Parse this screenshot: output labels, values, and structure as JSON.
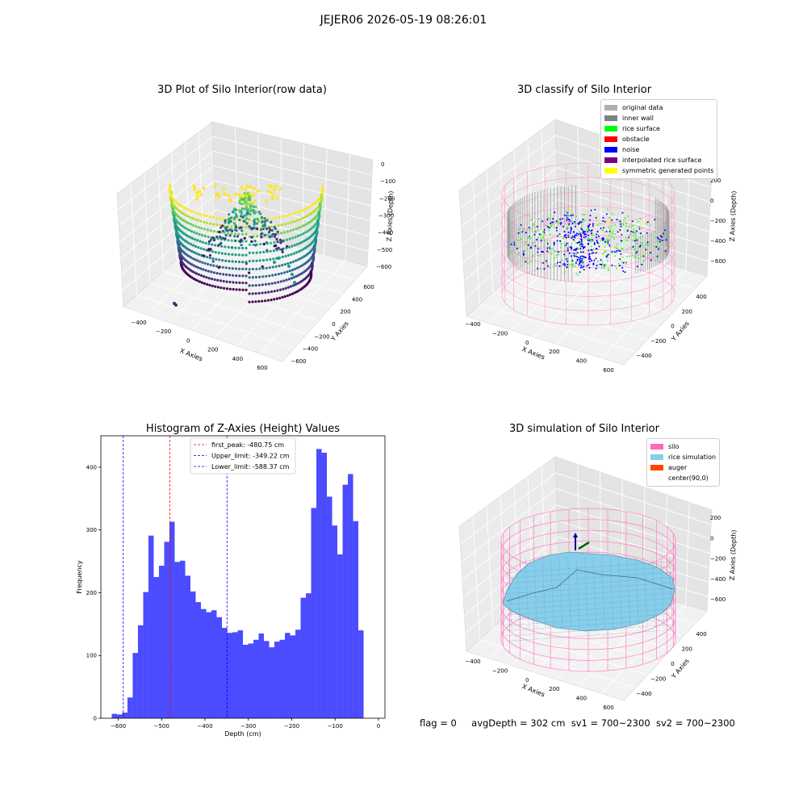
{
  "suptitle": "JEJER06 2026-05-19 08:26:01",
  "panels": {
    "raw": {
      "title": "3D Plot of Silo Interior(row data)",
      "xlabel": "X Axies",
      "ylabel": "Y Axies",
      "zlabel": "Z Axies (Depth)",
      "xticks": [
        "−400",
        "−200",
        "0",
        "200",
        "400",
        "600"
      ],
      "yticks": [
        "600",
        "400",
        "200",
        "0",
        "−200",
        "−400",
        "−600"
      ],
      "zticks": [
        "0",
        "−100",
        "−200",
        "−300",
        "−400",
        "−500",
        "−600"
      ],
      "colormap": "viridis"
    },
    "classify": {
      "title": "3D classify of Silo Interior",
      "xlabel": "X Axies",
      "ylabel": "Y Axies",
      "zlabel": "Z Axies (Depth)",
      "xticks": [
        "−400",
        "−200",
        "0",
        "200",
        "400",
        "600"
      ],
      "yticks": [
        "400",
        "200",
        "0",
        "−200",
        "−400"
      ],
      "zticks": [
        "200",
        "0",
        "−200",
        "−400",
        "−600"
      ],
      "legend": [
        {
          "label": "original data",
          "color": "#b0b0b0"
        },
        {
          "label": "inner wall",
          "color": "#808080"
        },
        {
          "label": "rice surface",
          "color": "#00ff00"
        },
        {
          "label": "obstacle",
          "color": "#ff0000"
        },
        {
          "label": "noise",
          "color": "#0000ff"
        },
        {
          "label": "interpolated rice surface",
          "color": "#800080"
        },
        {
          "label": "symmetric generated points",
          "color": "#ffff00"
        }
      ]
    },
    "simulation": {
      "title": "3D simulation of Silo Interior",
      "xlabel": "X Axies",
      "ylabel": "Y Axies",
      "zlabel": "Z Axies (Depth)",
      "xticks": [
        "−400",
        "−200",
        "0",
        "200",
        "400",
        "600"
      ],
      "yticks": [
        "400",
        "200",
        "0",
        "−200",
        "−400"
      ],
      "zticks": [
        "200",
        "0",
        "−200",
        "−400",
        "−600"
      ],
      "legend": [
        {
          "label": "silo",
          "color": "#ff69b4"
        },
        {
          "label": "rice simulation",
          "color": "#87ceeb"
        },
        {
          "label": "auger",
          "color": "#ff4500"
        },
        {
          "label": "center(90,0)",
          "color": ""
        }
      ]
    }
  },
  "footer": {
    "flag": "flag = 0",
    "avg": "avgDepth = 302 cm",
    "sv1": "sv1 = 700~2300",
    "sv2": "sv2 = 700~2300"
  },
  "chart_data": [
    {
      "type": "scatter",
      "title": "3D Plot of Silo Interior(row data)",
      "xlabel": "X Axies",
      "ylabel": "Y Axies",
      "zlabel": "Z Axies (Depth)",
      "xlim": [
        -500,
        650
      ],
      "ylim": [
        -650,
        650
      ],
      "zlim": [
        -700,
        0
      ],
      "colormap": "viridis",
      "grid": true
    },
    {
      "type": "scatter",
      "title": "3D classify of Silo Interior",
      "xlabel": "X Axies",
      "ylabel": "Y Axies",
      "zlabel": "Z Axies (Depth)",
      "xlim": [
        -500,
        650
      ],
      "ylim": [
        -500,
        500
      ],
      "zlim": [
        -700,
        250
      ],
      "legend_position": "top-right",
      "grid": true
    },
    {
      "type": "bar",
      "title": "Histogram of Z-Axies (Height) Values",
      "xlabel": "Depth (cm)",
      "ylabel": "Frequency",
      "xlim": [
        -640,
        15
      ],
      "ylim": [
        0,
        450
      ],
      "xticks": [
        -600,
        -500,
        -400,
        -300,
        -200,
        -100,
        0
      ],
      "yticks": [
        0,
        100,
        200,
        300,
        400
      ],
      "bar_color": "#4b4bff",
      "bin_left": -615,
      "bin_width": 12.1,
      "values": [
        7,
        6,
        9,
        33,
        104,
        148,
        201,
        291,
        225,
        243,
        281,
        313,
        249,
        251,
        227,
        202,
        185,
        174,
        169,
        172,
        161,
        144,
        136,
        137,
        140,
        117,
        119,
        125,
        135,
        123,
        113,
        122,
        125,
        136,
        132,
        141,
        192,
        199,
        335,
        429,
        423,
        353,
        307,
        261,
        372,
        389,
        314,
        140
      ],
      "vlines": [
        {
          "x": -480.75,
          "color": "#ff0000",
          "label": "first_peak: -480.75 cm"
        },
        {
          "x": -349.22,
          "color": "#0000ff",
          "label": "Upper_limit: -349.22 cm"
        },
        {
          "x": -588.37,
          "color": "#0000ff",
          "label": "Lower_limit: -588.37 cm"
        }
      ],
      "legend_position": "top-center",
      "grid": false
    },
    {
      "type": "area",
      "title": "3D simulation of Silo Interior",
      "xlabel": "X Axies",
      "ylabel": "Y Axies",
      "zlabel": "Z Axies (Depth)",
      "xlim": [
        -500,
        650
      ],
      "ylim": [
        -500,
        500
      ],
      "zlim": [
        -700,
        250
      ],
      "legend_position": "top-right",
      "grid": true
    }
  ]
}
